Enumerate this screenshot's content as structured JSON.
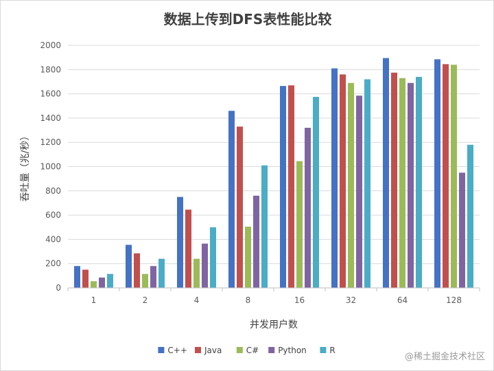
{
  "chart_data": {
    "type": "bar",
    "title": "数据上传到DFS表性能比较",
    "xlabel": "并发用户数",
    "ylabel": "吞吐量（兆/秒）",
    "categories": [
      "1",
      "2",
      "4",
      "8",
      "16",
      "32",
      "64",
      "128"
    ],
    "ylim": [
      0,
      2000
    ],
    "yticks": [
      0,
      200,
      400,
      600,
      800,
      1000,
      1200,
      1400,
      1600,
      1800,
      2000
    ],
    "grid": true,
    "legend_position": "bottom",
    "series": [
      {
        "name": "C++",
        "color": "#4472C4",
        "values": [
          180,
          355,
          750,
          1460,
          1665,
          1810,
          1895,
          1885
        ]
      },
      {
        "name": "Java",
        "color": "#C0504D",
        "values": [
          150,
          285,
          645,
          1330,
          1670,
          1760,
          1775,
          1845
        ]
      },
      {
        "name": "C#",
        "color": "#9BBB59",
        "values": [
          55,
          115,
          240,
          505,
          1045,
          1690,
          1730,
          1840
        ]
      },
      {
        "name": "Python",
        "color": "#8064A2",
        "values": [
          85,
          180,
          365,
          760,
          1320,
          1585,
          1690,
          950
        ]
      },
      {
        "name": "R",
        "color": "#4BACC6",
        "values": [
          115,
          240,
          500,
          1010,
          1575,
          1720,
          1740,
          1180
        ]
      }
    ]
  },
  "watermark": "@稀土掘金技术社区"
}
